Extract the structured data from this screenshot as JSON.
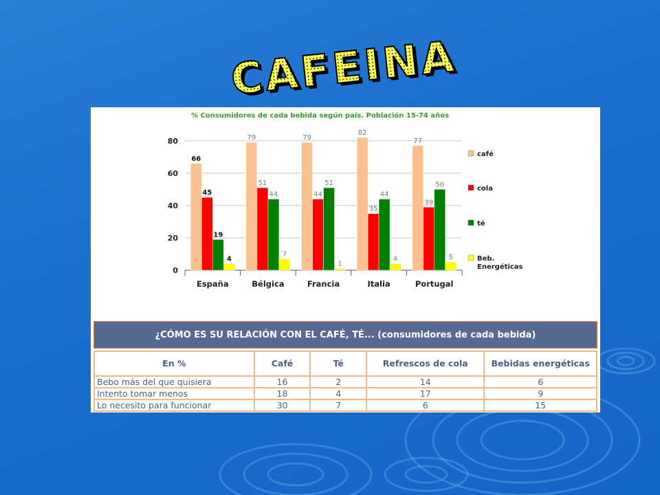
{
  "slide": {
    "title": "CAFEINA"
  },
  "chart_data": {
    "type": "bar",
    "title": "% Consumidores de cada bebida según país. Población 15-74 años",
    "categories": [
      "España",
      "Bélgica",
      "Francia",
      "Italia",
      "Portugal"
    ],
    "series": [
      {
        "name": "café",
        "color": "#fac090",
        "values": [
          66,
          79,
          79,
          82,
          77
        ]
      },
      {
        "name": "cola",
        "color": "#ff0000",
        "values": [
          45,
          51,
          44,
          35,
          39
        ]
      },
      {
        "name": "té",
        "color": "#008000",
        "values": [
          19,
          44,
          51,
          44,
          50
        ]
      },
      {
        "name": "Beb. Energéticas",
        "color": "#ffff00",
        "values": [
          4,
          7,
          1,
          4,
          5
        ]
      }
    ],
    "yticks": [
      0,
      20,
      40,
      60,
      80
    ],
    "ylim": [
      0,
      88
    ],
    "grid": true,
    "legend": "right"
  },
  "table": {
    "title": "¿CÓMO ES SU RELACIÓN CON EL CAFÉ, TÉ... (consumidores de cada bebida)",
    "headers": [
      "En %",
      "Café",
      "Té",
      "Refrescos de cola",
      "Bebidas energéticas"
    ],
    "rows": [
      [
        "Bebo más del que quisiera",
        "16",
        "2",
        "14",
        "6"
      ],
      [
        "Intento tomar menos",
        "18",
        "4",
        "17",
        "9"
      ],
      [
        "Lo necesito para funcionar",
        "30",
        "7",
        "6",
        "15"
      ]
    ]
  }
}
